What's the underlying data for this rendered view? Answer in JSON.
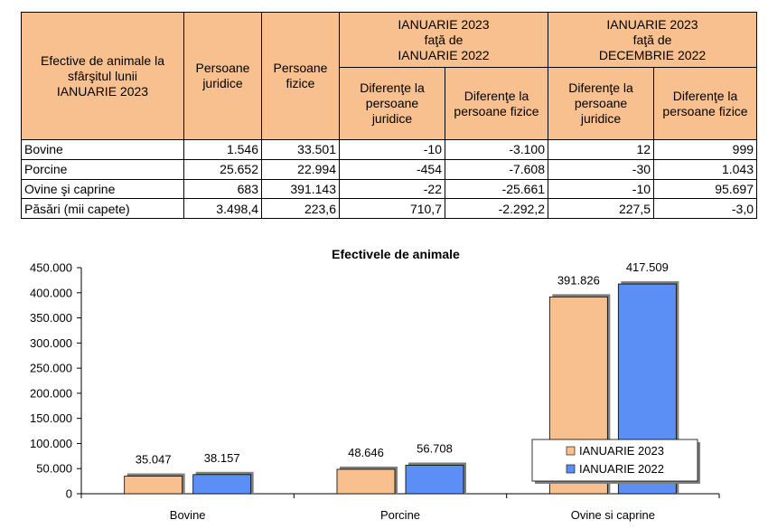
{
  "table": {
    "header": {
      "first_col": "Efective de animale la\nsfârşitul lunii\nIANUARIE 2023",
      "juridice": "Persoane\njuridice",
      "fizice": "Persoane\nfizice",
      "group1": "IANUARIE 2023\nfaţă de\nIANUARIE 2022",
      "group2": "IANUARIE 2023\nfaţă de\nDECEMBRIE 2022",
      "dif_juridice": "Diferenţe la\npersoane\njuridice",
      "dif_fizice": "Diferenţe la\npersoane fizice"
    },
    "rows": [
      {
        "label": "Bovine",
        "juridice": "1.546",
        "fizice": "33.501",
        "g1_jur": "-10",
        "g1_fiz": "-3.100",
        "g2_jur": "12",
        "g2_fiz": "999"
      },
      {
        "label": "Porcine",
        "juridice": "25.652",
        "fizice": "22.994",
        "g1_jur": "-454",
        "g1_fiz": "-7.608",
        "g2_jur": "-30",
        "g2_fiz": "1.043"
      },
      {
        "label": "Ovine şi caprine",
        "juridice": "683",
        "fizice": "391.143",
        "g1_jur": "-22",
        "g1_fiz": "-25.661",
        "g2_jur": "-10",
        "g2_fiz": "95.697"
      },
      {
        "label": "Păsări (mii capete)",
        "juridice": "3.498,4",
        "fizice": "223,6",
        "g1_jur": "710,7",
        "g1_fiz": "-2.292,2",
        "g2_jur": "227,5",
        "g2_fiz": "-3,0"
      }
    ]
  },
  "chart_data": {
    "type": "bar",
    "title": "Efectivele de animale",
    "categories": [
      "Bovine",
      "Porcine",
      "Ovine si caprine"
    ],
    "series": [
      {
        "name": "IANUARIE 2023",
        "values": [
          35047,
          48646,
          391826
        ],
        "labels": [
          "35.047",
          "48.646",
          "391.826"
        ],
        "color": "#f9c08f"
      },
      {
        "name": "IANUARIE 2022",
        "values": [
          38157,
          56708,
          417509
        ],
        "labels": [
          "38.157",
          "56.708",
          "417.509"
        ],
        "color": "#5b8ff5"
      }
    ],
    "ylim": [
      0,
      450000
    ],
    "yticks": [
      0,
      50000,
      100000,
      150000,
      200000,
      250000,
      300000,
      350000,
      400000,
      450000
    ],
    "ytick_labels": [
      "0",
      "50.000",
      "100.000",
      "150.000",
      "200.000",
      "250.000",
      "300.000",
      "350.000",
      "400.000",
      "450.000"
    ],
    "grid": false,
    "legend_position": "bottom-right",
    "xlabel": "",
    "ylabel": ""
  }
}
